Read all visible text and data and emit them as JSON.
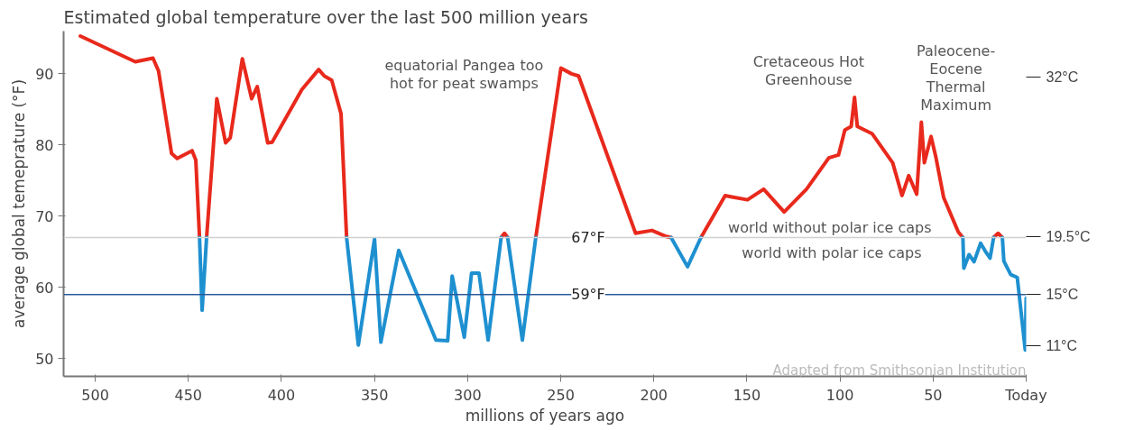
{
  "chart_data": {
    "type": "line",
    "title": "Estimated global temperature over the last 500 million years",
    "xlabel": "millions of years ago",
    "ylabel": "average global temeprature (°F)",
    "xlim": [
      517,
      0
    ],
    "xticks": [
      500,
      450,
      400,
      350,
      300,
      250,
      200,
      150,
      100,
      50,
      {
        "value": 0,
        "label": "Today"
      }
    ],
    "ylim": [
      47.5,
      96
    ],
    "yticks": [
      50,
      60,
      70,
      80,
      90
    ],
    "y2lim": [
      8.611,
      35.556
    ],
    "y2ticks": [
      {
        "value": 32,
        "label": "32°C"
      },
      {
        "value": 19.5,
        "label": "19.5°C"
      },
      {
        "value": 15,
        "label": "15°C"
      },
      {
        "value": 11,
        "label": "11°C"
      }
    ],
    "grid": false,
    "line_style": "solid",
    "marker": "none",
    "series": [
      {
        "color": "#e8291c",
        "x": [
          508,
          478.5,
          469,
          466,
          459,
          456,
          448,
          446,
          444,
          443,
          440.2,
          434.7,
          430,
          427.5,
          421,
          416,
          413,
          407.4,
          405,
          389,
          380,
          377,
          373,
          368,
          365,
          300,
          282,
          280.2,
          278.5,
          270,
          263.4,
          249.9,
          244.2,
          240.4,
          209.8,
          201,
          193.9,
          190.7,
          182,
          174.7,
          161.7,
          158,
          149.7,
          141,
          130,
          118,
          106,
          100.8,
          97.4,
          94,
          92.2,
          90.7,
          82.8,
          71.7,
          66.7,
          63.1,
          58.8,
          56.3,
          54.7,
          51.1,
          48.6,
          44.3,
          36.5,
          34,
          25,
          17.5,
          15.1,
          12.8
        ],
        "values": [
          95.3,
          91.7,
          92.2,
          90.4,
          78.8,
          78.1,
          79.2,
          77.9,
          67,
          null,
          67,
          86.5,
          80.3,
          81,
          92.1,
          86.5,
          88.2,
          80.3,
          80.4,
          87.8,
          90.6,
          89.7,
          89.1,
          84.4,
          67,
          null,
          67,
          67.6,
          67,
          null,
          67,
          90.8,
          90,
          89.7,
          67.6,
          68,
          67.2,
          67,
          null,
          67,
          72.9,
          72.7,
          72.3,
          73.8,
          70.6,
          73.8,
          78.2,
          78.6,
          82.1,
          82.6,
          86.7,
          82.6,
          81.6,
          77.5,
          72.9,
          75.7,
          73.1,
          83.2,
          77.5,
          81.2,
          78.4,
          72.6,
          67.8,
          67,
          null,
          67,
          67.6,
          67
        ]
      },
      {
        "color": "#1e90d0",
        "x": [
          444,
          442.6,
          440.2,
          400,
          365,
          358.7,
          350,
          346.6,
          337,
          317,
          310.7,
          308.3,
          301.8,
          297.9,
          293.9,
          289,
          282,
          280,
          278.5,
          270.6,
          263.4,
          230,
          190.7,
          181.9,
          174.7,
          100,
          34,
          33.5,
          30.7,
          28,
          24.5,
          22,
          19.4,
          17.5,
          15,
          12.8,
          12,
          8.3,
          4.8,
          0.5,
          0
        ],
        "values": [
          67,
          56.8,
          67,
          null,
          67,
          51.9,
          66.8,
          52.3,
          65.2,
          52.6,
          52.5,
          61.6,
          53,
          62,
          62,
          52.6,
          67,
          null,
          67,
          52.6,
          67,
          null,
          67,
          62.9,
          67,
          null,
          67,
          62.7,
          64.6,
          63.6,
          66.2,
          65.1,
          64.1,
          67,
          null,
          67,
          63.7,
          61.8,
          61.4,
          51.2,
          58.5
        ]
      }
    ],
    "ref_lines": [
      {
        "axis": "y",
        "value": 67,
        "label": "67°F",
        "color": "#d0d0d0"
      },
      {
        "axis": "y",
        "value": 59,
        "label": "59°F",
        "color": "#2a5a9a"
      }
    ],
    "annotations": [
      "equatorial Pangea too\nhot for peat swamps",
      "Cretaceous Hot\nGreenhouse",
      "Paleocene-\nEocene\nThermal\nMaximum",
      "world without polar ice caps",
      "world with polar ice caps",
      "Adapted from Smithsonian Institution"
    ]
  }
}
